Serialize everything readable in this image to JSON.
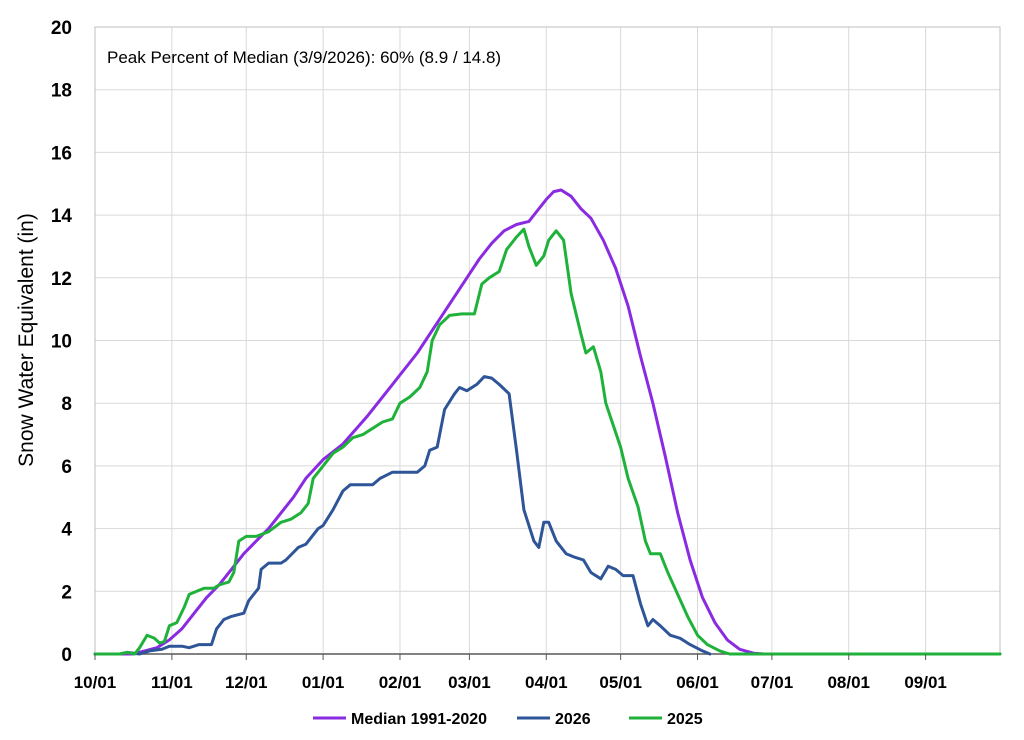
{
  "chart_data": {
    "type": "line",
    "ylabel": "Snow Water Equivalent (in)",
    "annotation": "Peak Percent of Median (3/9/2026): 60% (8.9 / 14.8)",
    "ylim": [
      0,
      20
    ],
    "yticks": [
      "0",
      "2",
      "4",
      "6",
      "8",
      "10",
      "12",
      "14",
      "16",
      "18",
      "20"
    ],
    "xlim": [
      0,
      365
    ],
    "xticks": [
      {
        "x": 0,
        "label": "10/01"
      },
      {
        "x": 31,
        "label": "11/01"
      },
      {
        "x": 61,
        "label": "12/01"
      },
      {
        "x": 92,
        "label": "01/01"
      },
      {
        "x": 123,
        "label": "02/01"
      },
      {
        "x": 151,
        "label": "03/01"
      },
      {
        "x": 182,
        "label": "04/01"
      },
      {
        "x": 212,
        "label": "05/01"
      },
      {
        "x": 243,
        "label": "06/01"
      },
      {
        "x": 273,
        "label": "07/01"
      },
      {
        "x": 304,
        "label": "08/01"
      },
      {
        "x": 335,
        "label": "09/01"
      }
    ],
    "grid": true,
    "legend_position": "bottom",
    "series": [
      {
        "name": "Median 1991-2020",
        "color": "#8a2be2",
        "points": [
          [
            0,
            0
          ],
          [
            15,
            0
          ],
          [
            20,
            0.1
          ],
          [
            25,
            0.2
          ],
          [
            30,
            0.45
          ],
          [
            35,
            0.8
          ],
          [
            40,
            1.3
          ],
          [
            45,
            1.8
          ],
          [
            50,
            2.2
          ],
          [
            55,
            2.7
          ],
          [
            60,
            3.2
          ],
          [
            65,
            3.6
          ],
          [
            70,
            4.0
          ],
          [
            75,
            4.5
          ],
          [
            80,
            5.0
          ],
          [
            85,
            5.6
          ],
          [
            92,
            6.2
          ],
          [
            100,
            6.7
          ],
          [
            110,
            7.6
          ],
          [
            120,
            8.6
          ],
          [
            130,
            9.6
          ],
          [
            140,
            10.8
          ],
          [
            150,
            12.0
          ],
          [
            155,
            12.6
          ],
          [
            160,
            13.1
          ],
          [
            165,
            13.5
          ],
          [
            170,
            13.7
          ],
          [
            175,
            13.8
          ],
          [
            178,
            14.1
          ],
          [
            182,
            14.5
          ],
          [
            185,
            14.75
          ],
          [
            188,
            14.8
          ],
          [
            192,
            14.6
          ],
          [
            196,
            14.2
          ],
          [
            200,
            13.9
          ],
          [
            205,
            13.2
          ],
          [
            210,
            12.3
          ],
          [
            215,
            11.1
          ],
          [
            220,
            9.5
          ],
          [
            225,
            8.0
          ],
          [
            230,
            6.3
          ],
          [
            235,
            4.5
          ],
          [
            240,
            3.0
          ],
          [
            245,
            1.8
          ],
          [
            250,
            1.0
          ],
          [
            255,
            0.45
          ],
          [
            260,
            0.15
          ],
          [
            266,
            0.02
          ],
          [
            270,
            0
          ],
          [
            365,
            0
          ]
        ]
      },
      {
        "name": "2026",
        "color": "#2e5597",
        "points": [
          [
            0,
            0
          ],
          [
            10,
            0
          ],
          [
            13,
            0.05
          ],
          [
            18,
            0
          ],
          [
            22,
            0.1
          ],
          [
            27,
            0.15
          ],
          [
            30,
            0.25
          ],
          [
            35,
            0.25
          ],
          [
            38,
            0.2
          ],
          [
            42,
            0.3
          ],
          [
            47,
            0.3
          ],
          [
            49,
            0.8
          ],
          [
            52,
            1.1
          ],
          [
            55,
            1.2
          ],
          [
            60,
            1.3
          ],
          [
            62,
            1.7
          ],
          [
            66,
            2.1
          ],
          [
            67,
            2.7
          ],
          [
            70,
            2.9
          ],
          [
            75,
            2.9
          ],
          [
            77,
            3.0
          ],
          [
            82,
            3.4
          ],
          [
            85,
            3.5
          ],
          [
            90,
            4.0
          ],
          [
            92,
            4.1
          ],
          [
            96,
            4.6
          ],
          [
            100,
            5.2
          ],
          [
            103,
            5.4
          ],
          [
            108,
            5.4
          ],
          [
            112,
            5.4
          ],
          [
            115,
            5.6
          ],
          [
            120,
            5.8
          ],
          [
            125,
            5.8
          ],
          [
            130,
            5.8
          ],
          [
            133,
            6.0
          ],
          [
            135,
            6.5
          ],
          [
            138,
            6.6
          ],
          [
            141,
            7.8
          ],
          [
            145,
            8.3
          ],
          [
            147,
            8.5
          ],
          [
            150,
            8.4
          ],
          [
            154,
            8.6
          ],
          [
            157,
            8.85
          ],
          [
            160,
            8.8
          ],
          [
            163,
            8.6
          ],
          [
            167,
            8.3
          ],
          [
            170,
            6.5
          ],
          [
            173,
            4.6
          ],
          [
            177,
            3.6
          ],
          [
            179,
            3.4
          ],
          [
            181,
            4.2
          ],
          [
            183,
            4.2
          ],
          [
            186,
            3.6
          ],
          [
            190,
            3.2
          ],
          [
            193,
            3.1
          ],
          [
            197,
            3.0
          ],
          [
            200,
            2.6
          ],
          [
            204,
            2.4
          ],
          [
            207,
            2.8
          ],
          [
            210,
            2.7
          ],
          [
            213,
            2.5
          ],
          [
            217,
            2.5
          ],
          [
            220,
            1.6
          ],
          [
            223,
            0.9
          ],
          [
            225,
            1.1
          ],
          [
            228,
            0.9
          ],
          [
            232,
            0.6
          ],
          [
            236,
            0.5
          ],
          [
            240,
            0.3
          ],
          [
            245,
            0.1
          ],
          [
            248,
            0
          ]
        ]
      },
      {
        "name": "2025",
        "color": "#1fb23a",
        "points": [
          [
            0,
            0
          ],
          [
            10,
            0
          ],
          [
            13,
            0.05
          ],
          [
            16,
            0
          ],
          [
            18,
            0.2
          ],
          [
            21,
            0.6
          ],
          [
            24,
            0.5
          ],
          [
            26,
            0.35
          ],
          [
            28,
            0.4
          ],
          [
            30,
            0.9
          ],
          [
            33,
            1.0
          ],
          [
            36,
            1.5
          ],
          [
            38,
            1.9
          ],
          [
            41,
            2.0
          ],
          [
            44,
            2.1
          ],
          [
            48,
            2.1
          ],
          [
            50,
            2.2
          ],
          [
            54,
            2.3
          ],
          [
            56,
            2.6
          ],
          [
            58,
            3.6
          ],
          [
            61,
            3.75
          ],
          [
            65,
            3.75
          ],
          [
            70,
            3.9
          ],
          [
            75,
            4.2
          ],
          [
            79,
            4.3
          ],
          [
            83,
            4.5
          ],
          [
            86,
            4.8
          ],
          [
            88,
            5.6
          ],
          [
            92,
            6.0
          ],
          [
            96,
            6.4
          ],
          [
            100,
            6.6
          ],
          [
            104,
            6.9
          ],
          [
            108,
            7.0
          ],
          [
            112,
            7.2
          ],
          [
            116,
            7.4
          ],
          [
            120,
            7.5
          ],
          [
            123,
            8.0
          ],
          [
            127,
            8.2
          ],
          [
            131,
            8.5
          ],
          [
            134,
            9.0
          ],
          [
            136,
            10.0
          ],
          [
            139,
            10.5
          ],
          [
            143,
            10.8
          ],
          [
            148,
            10.85
          ],
          [
            153,
            10.85
          ],
          [
            156,
            11.8
          ],
          [
            159,
            12.0
          ],
          [
            163,
            12.2
          ],
          [
            166,
            12.9
          ],
          [
            170,
            13.3
          ],
          [
            173,
            13.55
          ],
          [
            175,
            13.0
          ],
          [
            178,
            12.4
          ],
          [
            181,
            12.7
          ],
          [
            183,
            13.2
          ],
          [
            186,
            13.5
          ],
          [
            189,
            13.2
          ],
          [
            192,
            11.5
          ],
          [
            196,
            10.2
          ],
          [
            198,
            9.6
          ],
          [
            201,
            9.8
          ],
          [
            204,
            9.0
          ],
          [
            206,
            8.0
          ],
          [
            209,
            7.3
          ],
          [
            212,
            6.6
          ],
          [
            215,
            5.6
          ],
          [
            219,
            4.7
          ],
          [
            222,
            3.6
          ],
          [
            224,
            3.2
          ],
          [
            228,
            3.2
          ],
          [
            231,
            2.6
          ],
          [
            235,
            1.9
          ],
          [
            239,
            1.2
          ],
          [
            243,
            0.6
          ],
          [
            247,
            0.3
          ],
          [
            252,
            0.1
          ],
          [
            256,
            0
          ],
          [
            365,
            0
          ]
        ]
      }
    ]
  }
}
